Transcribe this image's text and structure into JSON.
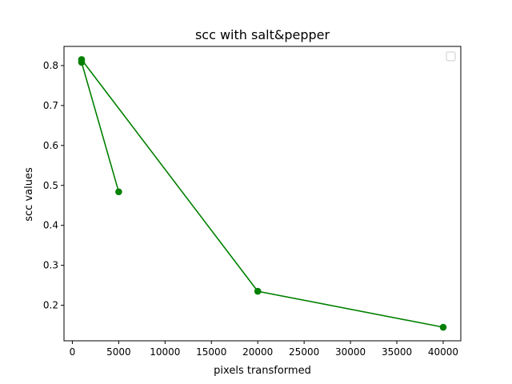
{
  "chart_data": {
    "type": "line",
    "title": "scc with salt&pepper",
    "xlabel": "pixels transformed",
    "ylabel": "scc values",
    "xlim": [
      -900,
      41900
    ],
    "ylim": [
      0.111,
      0.848
    ],
    "x_ticks": [
      0,
      5000,
      10000,
      15000,
      20000,
      25000,
      30000,
      35000,
      40000
    ],
    "y_ticks": [
      0.2,
      0.3,
      0.4,
      0.5,
      0.6,
      0.7,
      0.8
    ],
    "grid": false,
    "legend": {
      "placement": "top-right",
      "entries": []
    },
    "series": [
      {
        "color": "#008000",
        "marker": "circle",
        "x": [
          5000,
          1000,
          1000,
          20000,
          40000
        ],
        "y": [
          0.484,
          0.808,
          0.815,
          0.235,
          0.145
        ]
      }
    ]
  }
}
